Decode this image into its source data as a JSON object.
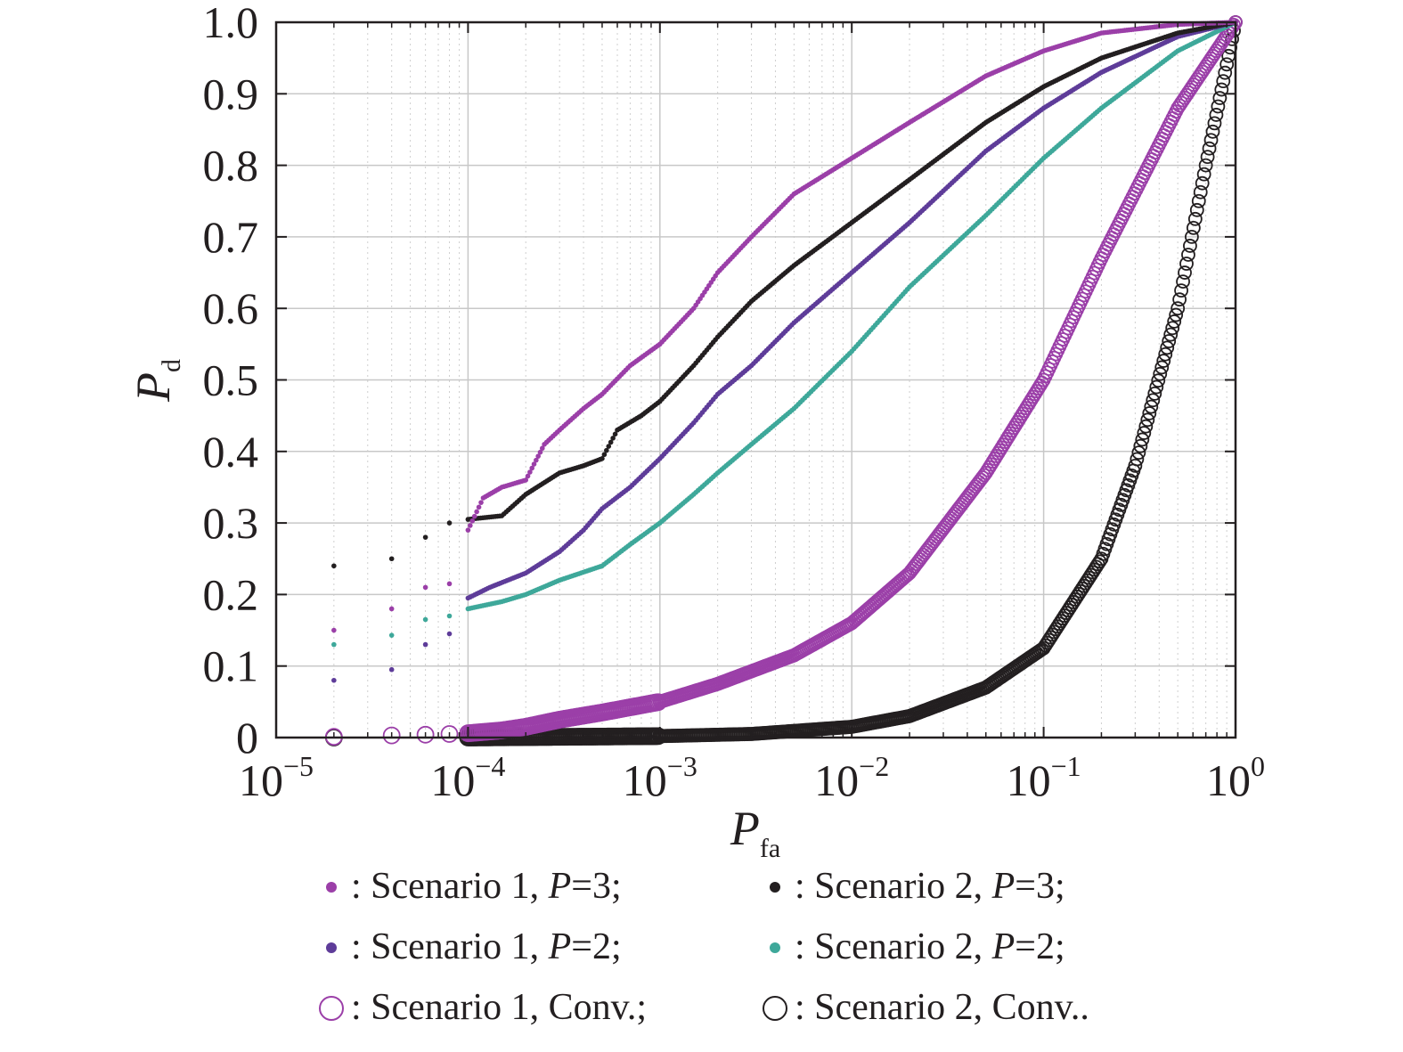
{
  "chart_data": {
    "type": "scatter",
    "xscale": "log",
    "xlim": [
      1e-05,
      1
    ],
    "ylim": [
      0,
      1
    ],
    "grid": true,
    "xlabel": {
      "main": "P",
      "sub": "fa"
    },
    "ylabel": {
      "main": "P",
      "sub": "d"
    },
    "x_ticks": [
      {
        "base": "10",
        "exp": "−5",
        "value": 1e-05
      },
      {
        "base": "10",
        "exp": "−4",
        "value": 0.0001
      },
      {
        "base": "10",
        "exp": "−3",
        "value": 0.001
      },
      {
        "base": "10",
        "exp": "−2",
        "value": 0.01
      },
      {
        "base": "10",
        "exp": "−1",
        "value": 0.1
      },
      {
        "base": "10",
        "exp": "0",
        "value": 1
      }
    ],
    "y_ticks": [
      "0",
      "0.1",
      "0.2",
      "0.3",
      "0.4",
      "0.5",
      "0.6",
      "0.7",
      "0.8",
      "0.9",
      "1.0"
    ],
    "legend_position": "bottom",
    "series": [
      {
        "key": "s1p3",
        "marker": "dot",
        "color": "#9b3fa8",
        "legend": {
          "pre": ": Scenario 1, ",
          "italic": "P",
          "post": "=3;"
        },
        "points": [
          [
            2e-05,
            0.15
          ],
          [
            4e-05,
            0.18
          ],
          [
            6e-05,
            0.21
          ],
          [
            8e-05,
            0.215
          ],
          [
            0.0001,
            0.29
          ],
          [
            0.00012,
            0.335
          ],
          [
            0.00015,
            0.35
          ],
          [
            0.0002,
            0.36
          ],
          [
            0.00025,
            0.41
          ],
          [
            0.0003,
            0.43
          ],
          [
            0.0004,
            0.46
          ],
          [
            0.0005,
            0.48
          ],
          [
            0.0007,
            0.52
          ],
          [
            0.001,
            0.55
          ],
          [
            0.0015,
            0.6
          ],
          [
            0.002,
            0.65
          ],
          [
            0.003,
            0.7
          ],
          [
            0.005,
            0.76
          ],
          [
            0.01,
            0.81
          ],
          [
            0.02,
            0.86
          ],
          [
            0.05,
            0.925
          ],
          [
            0.1,
            0.96
          ],
          [
            0.2,
            0.985
          ],
          [
            0.5,
            0.997
          ],
          [
            1,
            1
          ]
        ]
      },
      {
        "key": "s2p3",
        "marker": "dot",
        "color": "#231f20",
        "legend": {
          "pre": ": Scenario 2, ",
          "italic": "P",
          "post": "=3;"
        },
        "points": [
          [
            2e-05,
            0.24
          ],
          [
            4e-05,
            0.25
          ],
          [
            6e-05,
            0.28
          ],
          [
            8e-05,
            0.3
          ],
          [
            0.0001,
            0.305
          ],
          [
            0.00015,
            0.31
          ],
          [
            0.0002,
            0.34
          ],
          [
            0.0003,
            0.37
          ],
          [
            0.0004,
            0.38
          ],
          [
            0.0005,
            0.39
          ],
          [
            0.0006,
            0.43
          ],
          [
            0.0008,
            0.45
          ],
          [
            0.001,
            0.47
          ],
          [
            0.0015,
            0.52
          ],
          [
            0.002,
            0.56
          ],
          [
            0.003,
            0.61
          ],
          [
            0.005,
            0.66
          ],
          [
            0.01,
            0.72
          ],
          [
            0.02,
            0.78
          ],
          [
            0.05,
            0.86
          ],
          [
            0.1,
            0.91
          ],
          [
            0.2,
            0.95
          ],
          [
            0.5,
            0.985
          ],
          [
            1,
            1
          ]
        ]
      },
      {
        "key": "s1p2",
        "marker": "dot",
        "color": "#5e3c99",
        "legend": {
          "pre": ": Scenario 1, ",
          "italic": "P",
          "post": "=2;"
        },
        "points": [
          [
            2e-05,
            0.08
          ],
          [
            4e-05,
            0.095
          ],
          [
            6e-05,
            0.13
          ],
          [
            8e-05,
            0.145
          ],
          [
            0.0001,
            0.195
          ],
          [
            0.00013,
            0.21
          ],
          [
            0.0002,
            0.23
          ],
          [
            0.0003,
            0.26
          ],
          [
            0.0004,
            0.29
          ],
          [
            0.0005,
            0.32
          ],
          [
            0.0007,
            0.35
          ],
          [
            0.001,
            0.39
          ],
          [
            0.0015,
            0.44
          ],
          [
            0.002,
            0.48
          ],
          [
            0.003,
            0.52
          ],
          [
            0.005,
            0.58
          ],
          [
            0.01,
            0.65
          ],
          [
            0.02,
            0.72
          ],
          [
            0.05,
            0.82
          ],
          [
            0.1,
            0.88
          ],
          [
            0.2,
            0.93
          ],
          [
            0.5,
            0.98
          ],
          [
            1,
            1
          ]
        ]
      },
      {
        "key": "s2p2",
        "marker": "dot",
        "color": "#3ea89a",
        "legend": {
          "pre": ": Scenario 2, ",
          "italic": "P",
          "post": "=2;"
        },
        "points": [
          [
            2e-05,
            0.13
          ],
          [
            4e-05,
            0.143
          ],
          [
            6e-05,
            0.165
          ],
          [
            8e-05,
            0.17
          ],
          [
            0.0001,
            0.18
          ],
          [
            0.00015,
            0.19
          ],
          [
            0.0002,
            0.2
          ],
          [
            0.0003,
            0.22
          ],
          [
            0.0005,
            0.24
          ],
          [
            0.0007,
            0.27
          ],
          [
            0.001,
            0.3
          ],
          [
            0.0015,
            0.34
          ],
          [
            0.002,
            0.37
          ],
          [
            0.003,
            0.41
          ],
          [
            0.005,
            0.46
          ],
          [
            0.01,
            0.54
          ],
          [
            0.02,
            0.63
          ],
          [
            0.05,
            0.73
          ],
          [
            0.1,
            0.81
          ],
          [
            0.2,
            0.88
          ],
          [
            0.5,
            0.96
          ],
          [
            1,
            1
          ]
        ]
      },
      {
        "key": "s1conv",
        "marker": "circle",
        "color": "#9b3fa8",
        "legend": {
          "pre": ": Scenario 1, Conv.;",
          "italic": "",
          "post": ""
        },
        "points": [
          [
            2e-05,
            0.001
          ],
          [
            4e-05,
            0.003
          ],
          [
            6e-05,
            0.004
          ],
          [
            8e-05,
            0.005
          ],
          [
            0.0001,
            0.006
          ],
          [
            0.00015,
            0.01
          ],
          [
            0.0002,
            0.015
          ],
          [
            0.0003,
            0.025
          ],
          [
            0.0005,
            0.035
          ],
          [
            0.001,
            0.05
          ],
          [
            0.002,
            0.075
          ],
          [
            0.005,
            0.115
          ],
          [
            0.01,
            0.16
          ],
          [
            0.02,
            0.23
          ],
          [
            0.05,
            0.37
          ],
          [
            0.1,
            0.5
          ],
          [
            0.2,
            0.67
          ],
          [
            0.5,
            0.88
          ],
          [
            1,
            1
          ]
        ]
      },
      {
        "key": "s2conv",
        "marker": "circle",
        "color": "#231f20",
        "legend": {
          "pre": ": Scenario 2, Conv..",
          "italic": "",
          "post": ""
        },
        "points": [
          [
            2e-05,
            0
          ],
          [
            0.0001,
            0
          ],
          [
            0.001,
            0.002
          ],
          [
            0.003,
            0.005
          ],
          [
            0.01,
            0.015
          ],
          [
            0.02,
            0.03
          ],
          [
            0.05,
            0.07
          ],
          [
            0.1,
            0.125
          ],
          [
            0.2,
            0.25
          ],
          [
            0.3,
            0.38
          ],
          [
            0.5,
            0.6
          ],
          [
            0.7,
            0.8
          ],
          [
            1,
            1
          ]
        ]
      }
    ]
  }
}
